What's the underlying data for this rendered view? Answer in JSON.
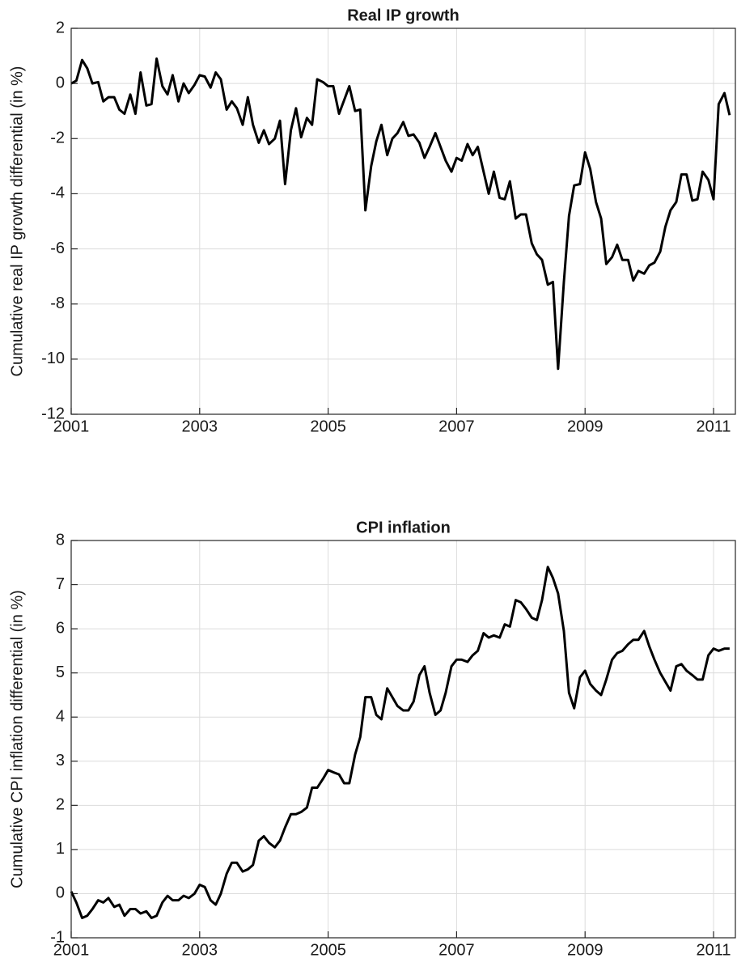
{
  "chart_data": [
    {
      "type": "line",
      "title": "Real IP growth",
      "ylabel": "Cumulative real IP growth differential (in %)",
      "color": "#000000",
      "grid": true,
      "x": [
        2001.0,
        2001.08,
        2001.17,
        2001.25,
        2001.33,
        2001.42,
        2001.5,
        2001.58,
        2001.67,
        2001.75,
        2001.83,
        2001.92,
        2002.0,
        2002.08,
        2002.17,
        2002.25,
        2002.33,
        2002.42,
        2002.5,
        2002.58,
        2002.67,
        2002.75,
        2002.83,
        2002.92,
        2003.0,
        2003.08,
        2003.17,
        2003.25,
        2003.33,
        2003.42,
        2003.5,
        2003.58,
        2003.67,
        2003.75,
        2003.83,
        2003.92,
        2004.0,
        2004.08,
        2004.17,
        2004.25,
        2004.33,
        2004.42,
        2004.5,
        2004.58,
        2004.67,
        2004.75,
        2004.83,
        2004.92,
        2005.0,
        2005.08,
        2005.17,
        2005.25,
        2005.33,
        2005.42,
        2005.5,
        2005.58,
        2005.67,
        2005.75,
        2005.83,
        2005.92,
        2006.0,
        2006.08,
        2006.17,
        2006.25,
        2006.33,
        2006.42,
        2006.5,
        2006.58,
        2006.67,
        2006.75,
        2006.83,
        2006.92,
        2007.0,
        2007.08,
        2007.17,
        2007.25,
        2007.33,
        2007.42,
        2007.5,
        2007.58,
        2007.67,
        2007.75,
        2007.83,
        2007.92,
        2008.0,
        2008.08,
        2008.17,
        2008.25,
        2008.33,
        2008.42,
        2008.5,
        2008.58,
        2008.67,
        2008.75,
        2008.83,
        2008.92,
        2009.0,
        2009.08,
        2009.17,
        2009.25,
        2009.33,
        2009.42,
        2009.5,
        2009.58,
        2009.67,
        2009.75,
        2009.83,
        2009.92,
        2010.0,
        2010.08,
        2010.17,
        2010.25,
        2010.33,
        2010.42,
        2010.5,
        2010.58,
        2010.67,
        2010.75,
        2010.83,
        2010.92,
        2011.0,
        2011.08,
        2011.17,
        2011.25
      ],
      "values": [
        0,
        0.1,
        0.85,
        0.55,
        0,
        0.05,
        -0.65,
        -0.5,
        -0.5,
        -0.95,
        -1.1,
        -0.4,
        -1.1,
        0.4,
        -0.8,
        -0.75,
        0.9,
        -0.1,
        -0.4,
        0.3,
        -0.65,
        0,
        -0.35,
        -0.05,
        0.3,
        0.25,
        -0.15,
        0.4,
        0.15,
        -0.95,
        -0.65,
        -0.9,
        -1.5,
        -0.5,
        -1.5,
        -2.15,
        -1.7,
        -2.2,
        -2.0,
        -1.35,
        -3.65,
        -1.7,
        -0.9,
        -1.95,
        -1.25,
        -1.5,
        0.15,
        0.05,
        -0.1,
        -0.1,
        -1.1,
        -0.6,
        -0.1,
        -1.0,
        -0.95,
        -4.6,
        -3.0,
        -2.1,
        -1.5,
        -2.6,
        -2.0,
        -1.8,
        -1.4,
        -1.9,
        -1.85,
        -2.15,
        -2.7,
        -2.3,
        -1.8,
        -2.3,
        -2.8,
        -3.2,
        -2.7,
        -2.8,
        -2.2,
        -2.6,
        -2.3,
        -3.2,
        -4.0,
        -3.2,
        -4.15,
        -4.2,
        -3.55,
        -4.9,
        -4.75,
        -4.75,
        -5.8,
        -6.2,
        -6.4,
        -7.3,
        -7.2,
        -10.35,
        -7.2,
        -4.8,
        -3.7,
        -3.65,
        -2.5,
        -3.1,
        -4.3,
        -4.9,
        -6.55,
        -6.3,
        -5.85,
        -6.4,
        -6.4,
        -7.15,
        -6.8,
        -6.9,
        -6.6,
        -6.5,
        -6.1,
        -5.2,
        -4.6,
        -4.3,
        -3.3,
        -3.3,
        -4.25,
        -4.2,
        -3.2,
        -3.5,
        -4.2,
        -0.75,
        -0.35,
        -1.15
      ],
      "xlim": [
        2001,
        2011.34
      ],
      "xticks": [
        2001,
        2003,
        2005,
        2007,
        2009,
        2011
      ],
      "ylim": [
        -12,
        2
      ],
      "yticks": [
        -12,
        -10,
        -8,
        -6,
        -4,
        -2,
        0,
        2
      ]
    },
    {
      "type": "line",
      "title": "CPI inflation",
      "ylabel": "Cumulative CPI inflation differential (in %)",
      "color": "#000000",
      "grid": true,
      "x": [
        2001.0,
        2001.08,
        2001.17,
        2001.25,
        2001.33,
        2001.42,
        2001.5,
        2001.58,
        2001.67,
        2001.75,
        2001.83,
        2001.92,
        2002.0,
        2002.08,
        2002.17,
        2002.25,
        2002.33,
        2002.42,
        2002.5,
        2002.58,
        2002.67,
        2002.75,
        2002.83,
        2002.92,
        2003.0,
        2003.08,
        2003.17,
        2003.25,
        2003.33,
        2003.42,
        2003.5,
        2003.58,
        2003.67,
        2003.75,
        2003.83,
        2003.92,
        2004.0,
        2004.08,
        2004.17,
        2004.25,
        2004.33,
        2004.42,
        2004.5,
        2004.58,
        2004.67,
        2004.75,
        2004.83,
        2004.92,
        2005.0,
        2005.08,
        2005.17,
        2005.25,
        2005.33,
        2005.42,
        2005.5,
        2005.58,
        2005.67,
        2005.75,
        2005.83,
        2005.92,
        2006.0,
        2006.08,
        2006.17,
        2006.25,
        2006.33,
        2006.42,
        2006.5,
        2006.58,
        2006.67,
        2006.75,
        2006.83,
        2006.92,
        2007.0,
        2007.08,
        2007.17,
        2007.25,
        2007.33,
        2007.42,
        2007.5,
        2007.58,
        2007.67,
        2007.75,
        2007.83,
        2007.92,
        2008.0,
        2008.08,
        2008.17,
        2008.25,
        2008.33,
        2008.42,
        2008.5,
        2008.58,
        2008.67,
        2008.75,
        2008.83,
        2008.92,
        2009.0,
        2009.08,
        2009.17,
        2009.25,
        2009.33,
        2009.42,
        2009.5,
        2009.58,
        2009.67,
        2009.75,
        2009.83,
        2009.92,
        2010.0,
        2010.08,
        2010.17,
        2010.25,
        2010.33,
        2010.42,
        2010.5,
        2010.58,
        2010.67,
        2010.75,
        2010.83,
        2010.92,
        2011.0,
        2011.08,
        2011.17,
        2011.25
      ],
      "values": [
        0.05,
        -0.2,
        -0.55,
        -0.5,
        -0.35,
        -0.15,
        -0.2,
        -0.1,
        -0.3,
        -0.25,
        -0.5,
        -0.35,
        -0.35,
        -0.45,
        -0.4,
        -0.55,
        -0.5,
        -0.2,
        -0.05,
        -0.15,
        -0.15,
        -0.05,
        -0.1,
        0,
        0.2,
        0.15,
        -0.15,
        -0.25,
        0,
        0.45,
        0.7,
        0.7,
        0.5,
        0.55,
        0.65,
        1.2,
        1.3,
        1.15,
        1.05,
        1.2,
        1.5,
        1.8,
        1.8,
        1.85,
        1.95,
        2.4,
        2.4,
        2.6,
        2.8,
        2.75,
        2.7,
        2.5,
        2.5,
        3.15,
        3.55,
        4.45,
        4.45,
        4.05,
        3.95,
        4.65,
        4.45,
        4.25,
        4.15,
        4.15,
        4.35,
        4.95,
        5.15,
        4.55,
        4.05,
        4.15,
        4.55,
        5.15,
        5.3,
        5.3,
        5.25,
        5.4,
        5.5,
        5.9,
        5.8,
        5.85,
        5.8,
        6.1,
        6.05,
        6.65,
        6.6,
        6.45,
        6.25,
        6.2,
        6.65,
        7.4,
        7.15,
        6.8,
        5.95,
        4.55,
        4.2,
        4.9,
        5.05,
        4.75,
        4.6,
        4.5,
        4.85,
        5.3,
        5.45,
        5.5,
        5.65,
        5.75,
        5.75,
        5.95,
        5.6,
        5.3,
        5.0,
        4.8,
        4.6,
        5.15,
        5.2,
        5.05,
        4.95,
        4.85,
        4.85,
        5.4,
        5.55,
        5.5,
        5.55,
        5.55
      ],
      "xlim": [
        2001,
        2011.34
      ],
      "xticks": [
        2001,
        2003,
        2005,
        2007,
        2009,
        2011
      ],
      "ylim": [
        -1,
        8
      ],
      "yticks": [
        -1,
        0,
        1,
        2,
        3,
        4,
        5,
        6,
        7,
        8
      ]
    }
  ]
}
